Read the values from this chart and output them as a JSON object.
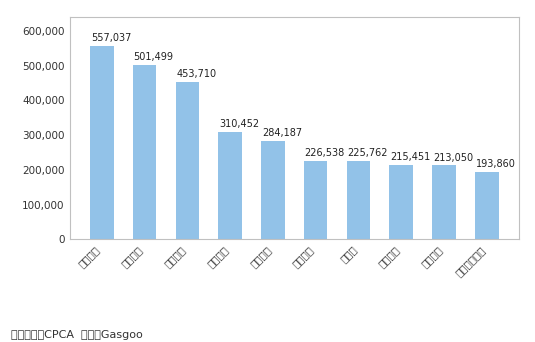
{
  "categories": [
    "上海通用",
    "上海大众",
    "一汽大众",
    "东风日产",
    "北京现代",
    "奇瑞汽车",
    "比亚迪",
    "吉利汽车",
    "长安福特",
    "长汽通用五较"
  ],
  "values": [
    557037,
    501499,
    453710,
    310452,
    284187,
    226538,
    225762,
    215451,
    213050,
    193860
  ],
  "bar_color": "#92C2E8",
  "value_labels": [
    "557,037",
    "501,499",
    "453,710",
    "310,452",
    "284,187",
    "226,538",
    "225,762",
    "215,451",
    "213,050",
    "193,860"
  ],
  "ylim": [
    0,
    640000
  ],
  "yticks": [
    0,
    100000,
    200000,
    300000,
    400000,
    500000,
    600000
  ],
  "ytick_labels": [
    "0",
    "100,000",
    "200,000",
    "300,000",
    "400,000",
    "500,000",
    "600,000"
  ],
  "footnote": "数据来源：CPCA  制图：Gasgoo",
  "bg_color": "#ffffff",
  "label_fontsize": 7,
  "tick_fontsize": 7.5,
  "footnote_fontsize": 8,
  "frame_color": "#c0c0c0"
}
